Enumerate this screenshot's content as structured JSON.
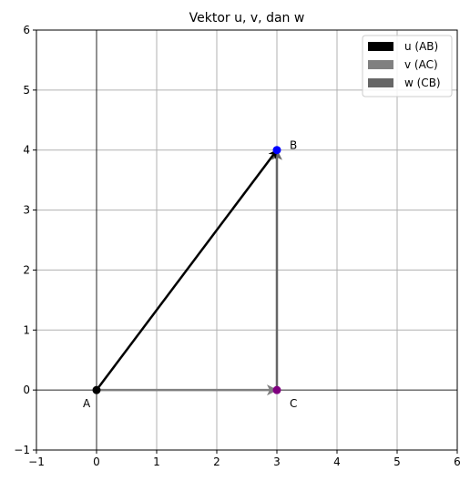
{
  "chart_data": {
    "type": "vector-plot",
    "title": "Vektor u, v, dan w",
    "xlim": [
      -1,
      6
    ],
    "ylim": [
      -1,
      6
    ],
    "xticks": [
      -1,
      0,
      1,
      2,
      3,
      4,
      5,
      6
    ],
    "yticks": [
      -1,
      0,
      1,
      2,
      3,
      4,
      5,
      6
    ],
    "grid": true,
    "axis_lines_at_zero": true,
    "legend_position": "top-right",
    "vectors": [
      {
        "name": "u (AB)",
        "from": [
          0,
          0
        ],
        "to": [
          3,
          4
        ],
        "color": "#000000"
      },
      {
        "name": "v (AC)",
        "from": [
          0,
          0
        ],
        "to": [
          3,
          0
        ],
        "color": "#808080"
      },
      {
        "name": "w (CB)",
        "from": [
          3,
          0
        ],
        "to": [
          3,
          4
        ],
        "color": "#666666"
      }
    ],
    "points": [
      {
        "label": "A",
        "x": 0,
        "y": 0,
        "color": "#000000"
      },
      {
        "label": "B",
        "x": 3,
        "y": 4,
        "color": "#0000ff"
      },
      {
        "label": "C",
        "x": 3,
        "y": 0,
        "color": "#800080"
      }
    ]
  }
}
